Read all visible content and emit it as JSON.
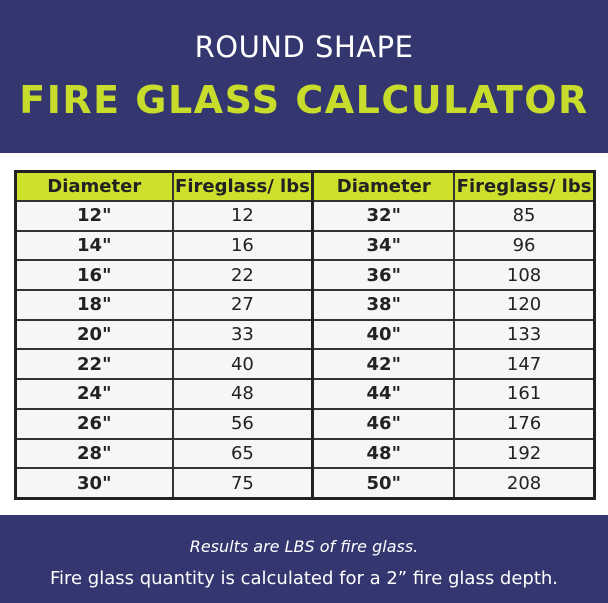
{
  "header": {
    "subtitle": "ROUND SHAPE",
    "title": "FIRE GLASS CALCULATOR"
  },
  "colors": {
    "navy": "#34366f",
    "accent": "#c8dd2b",
    "table_header": "#cfe02c"
  },
  "table": {
    "columns": [
      "Diameter",
      "Fireglass/ lbs",
      "Diameter",
      "Fireglass/ lbs"
    ],
    "rows": [
      [
        "12\"",
        "12",
        "32\"",
        "85"
      ],
      [
        "14\"",
        "16",
        "34\"",
        "96"
      ],
      [
        "16\"",
        "22",
        "36\"",
        "108"
      ],
      [
        "18\"",
        "27",
        "38\"",
        "120"
      ],
      [
        "20\"",
        "33",
        "40\"",
        "133"
      ],
      [
        "22\"",
        "40",
        "42\"",
        "147"
      ],
      [
        "24\"",
        "48",
        "44\"",
        "161"
      ],
      [
        "26\"",
        "56",
        "46\"",
        "176"
      ],
      [
        "28\"",
        "65",
        "48\"",
        "192"
      ],
      [
        "30\"",
        "75",
        "50\"",
        "208"
      ]
    ]
  },
  "footer": {
    "note": "Results are LBS of fire glass.",
    "depth": "Fire glass quantity is calculated for a 2” fire glass depth."
  }
}
